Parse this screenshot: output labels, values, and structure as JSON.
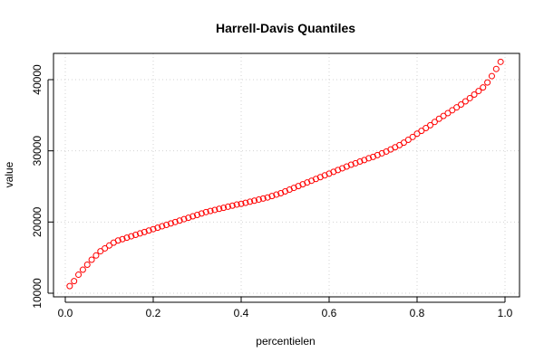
{
  "chart_data": {
    "type": "scatter",
    "title": "Harrell-Davis Quantiles",
    "xlabel": "percentielen",
    "ylabel": "value",
    "xlim": [
      0.0,
      1.0
    ],
    "ylim": [
      10000,
      43000
    ],
    "xticks": [
      "0.0",
      "0.2",
      "0.4",
      "0.6",
      "0.8",
      "1.0"
    ],
    "yticks": [
      "10000",
      "20000",
      "30000",
      "40000"
    ],
    "grid": true,
    "marker_color": "#ff0000",
    "series": [
      {
        "x": [
          0.01,
          0.02,
          0.03,
          0.04,
          0.05,
          0.06,
          0.07,
          0.08,
          0.09,
          0.1,
          0.11,
          0.12,
          0.13,
          0.14,
          0.15,
          0.16,
          0.17,
          0.18,
          0.19,
          0.2,
          0.21,
          0.22,
          0.23,
          0.24,
          0.25,
          0.26,
          0.27,
          0.28,
          0.29,
          0.3,
          0.31,
          0.32,
          0.33,
          0.34,
          0.35,
          0.36,
          0.37,
          0.38,
          0.39,
          0.4,
          0.41,
          0.42,
          0.43,
          0.44,
          0.45,
          0.46,
          0.47,
          0.48,
          0.49,
          0.5,
          0.51,
          0.52,
          0.53,
          0.54,
          0.55,
          0.56,
          0.57,
          0.58,
          0.59,
          0.6,
          0.61,
          0.62,
          0.63,
          0.64,
          0.65,
          0.66,
          0.67,
          0.68,
          0.69,
          0.7,
          0.71,
          0.72,
          0.73,
          0.74,
          0.75,
          0.76,
          0.77,
          0.78,
          0.79,
          0.8,
          0.81,
          0.82,
          0.83,
          0.84,
          0.85,
          0.86,
          0.87,
          0.88,
          0.89,
          0.9,
          0.91,
          0.92,
          0.93,
          0.94,
          0.95,
          0.96,
          0.97,
          0.98,
          0.99
        ],
        "y": [
          11000,
          11700,
          12600,
          13300,
          14000,
          14700,
          15300,
          15900,
          16300,
          16700,
          17100,
          17400,
          17600,
          17800,
          18000,
          18200,
          18400,
          18600,
          18800,
          19000,
          19200,
          19400,
          19600,
          19800,
          20000,
          20200,
          20400,
          20600,
          20800,
          21000,
          21200,
          21400,
          21550,
          21700,
          21850,
          22000,
          22150,
          22300,
          22450,
          22550,
          22700,
          22850,
          23000,
          23150,
          23300,
          23450,
          23650,
          23850,
          24050,
          24300,
          24550,
          24800,
          25050,
          25300,
          25550,
          25800,
          26050,
          26300,
          26550,
          26800,
          27050,
          27300,
          27550,
          27800,
          28050,
          28250,
          28500,
          28700,
          28950,
          29150,
          29400,
          29650,
          29900,
          30200,
          30500,
          30800,
          31150,
          31550,
          31950,
          32400,
          32800,
          33200,
          33600,
          34050,
          34500,
          34900,
          35300,
          35700,
          36100,
          36500,
          36950,
          37400,
          37900,
          38400,
          38900,
          39600,
          40500,
          41500,
          42500
        ]
      }
    ]
  }
}
